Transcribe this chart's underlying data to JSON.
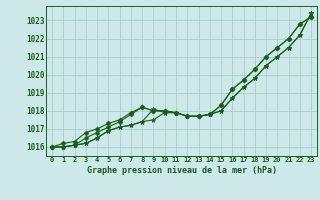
{
  "title": "Graphe pression niveau de la mer (hPa)",
  "background_color": "#cce8e8",
  "plot_bg_color": "#cce8e8",
  "grid_color": "#aacece",
  "line_color": "#1a5e1a",
  "x_labels": [
    "0",
    "1",
    "2",
    "3",
    "4",
    "5",
    "6",
    "7",
    "8",
    "9",
    "10",
    "11",
    "12",
    "13",
    "14",
    "15",
    "16",
    "17",
    "18",
    "19",
    "20",
    "21",
    "22",
    "23"
  ],
  "ylim": [
    1015.5,
    1023.8
  ],
  "yticks": [
    1016,
    1017,
    1018,
    1019,
    1020,
    1021,
    1022,
    1023
  ],
  "series": [
    [
      1016.0,
      1016.0,
      1016.1,
      1016.2,
      1016.5,
      1016.9,
      1017.1,
      1017.2,
      1017.4,
      1017.5,
      1017.9,
      1017.9,
      1017.7,
      1017.7,
      1017.8,
      1018.0,
      1018.7,
      1019.3,
      1019.8,
      1020.5,
      1021.0,
      1021.5,
      1022.2,
      1023.4
    ],
    [
      1016.0,
      1016.0,
      1016.1,
      1016.2,
      1016.5,
      1016.9,
      1017.1,
      1017.2,
      1017.4,
      1018.1,
      1017.9,
      1017.9,
      1017.7,
      1017.7,
      1017.8,
      1018.0,
      1018.7,
      1019.3,
      1019.8,
      1020.5,
      1021.0,
      1021.5,
      1022.2,
      1023.4
    ],
    [
      1016.0,
      1016.0,
      1016.1,
      1016.5,
      1016.8,
      1017.1,
      1017.4,
      1017.8,
      1018.2,
      1018.0,
      1018.0,
      1017.9,
      1017.7,
      1017.7,
      1017.8,
      1018.3,
      1019.2,
      1019.7,
      1020.3,
      1021.0,
      1021.5,
      1022.0,
      1022.8,
      1023.2
    ],
    [
      1016.0,
      1016.2,
      1016.3,
      1016.8,
      1017.0,
      1017.3,
      1017.5,
      1017.9,
      1018.2,
      1018.0,
      1018.0,
      1017.9,
      1017.7,
      1017.7,
      1017.8,
      1018.3,
      1019.2,
      1019.7,
      1020.3,
      1021.0,
      1021.5,
      1022.0,
      1022.8,
      1023.2
    ]
  ],
  "marker_styles": [
    "*",
    "*",
    "D",
    "D"
  ],
  "marker_sizes": [
    3.5,
    3.5,
    2.5,
    2.5
  ]
}
